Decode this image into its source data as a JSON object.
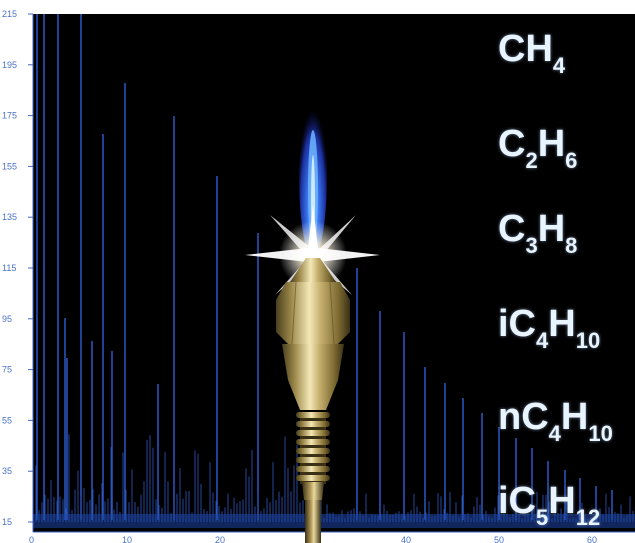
{
  "colors": {
    "background": "#000000",
    "peak": "#2f5fd0",
    "axis": "#3f66c4",
    "text": "#e8f4ff",
    "flame": "#2f6cff",
    "brass": "#b8a060"
  },
  "axis": {
    "y_ticks": [
      "215",
      "195",
      "175",
      "155",
      "135",
      "115",
      "95",
      "75",
      "55",
      "35",
      "15"
    ],
    "x_ticks": [
      "0",
      "10",
      "20",
      "30",
      "40",
      "50",
      "60"
    ]
  },
  "formulas": [
    {
      "main": "CH",
      "sub": "4",
      "tail": "",
      "tailsub": ""
    },
    {
      "main": "C",
      "sub": "2",
      "tail": "H",
      "tailsub": "6"
    },
    {
      "main": "C",
      "sub": "3",
      "tail": "H",
      "tailsub": "8"
    },
    {
      "main": "iC",
      "sub": "4",
      "tail": "H",
      "tailsub": "10"
    },
    {
      "main": "nC",
      "sub": "4",
      "tail": "H",
      "tailsub": "10"
    },
    {
      "main": "iC",
      "sub": "5",
      "tail": "H",
      "tailsub": "12"
    }
  ],
  "illustration": {
    "subject": "flame-ionization-jet",
    "icon": "fid-jet-icon"
  }
}
